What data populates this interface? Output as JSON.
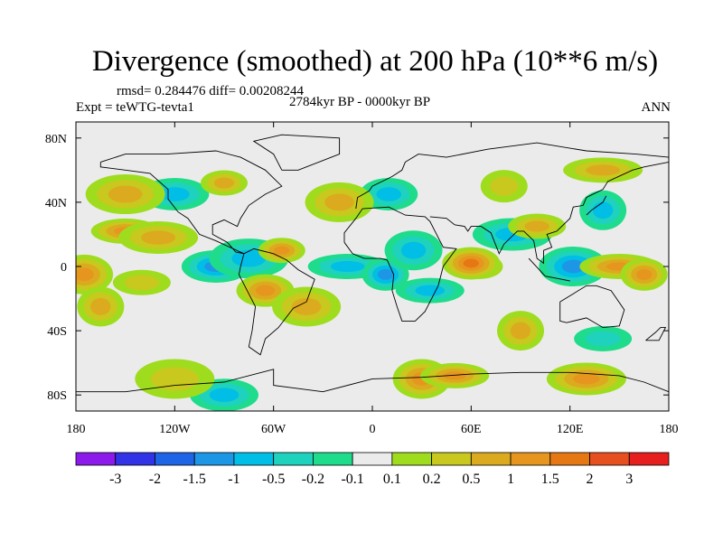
{
  "chart_data": {
    "type": "heatmap",
    "title": "Divergence (smoothed) at 200 hPa (10**6 m/s)",
    "stats_line": "rmsd= 0.284476 diff= 0.00208244",
    "experiment": "Expt = teWTG-tevta1",
    "period": "2784kyr BP - 0000kyr BP",
    "season": "ANN",
    "x_range": [
      -180,
      180
    ],
    "y_range": [
      -90,
      90
    ],
    "x_ticks": [
      {
        "value": -180,
        "label": "180"
      },
      {
        "value": -120,
        "label": "120W"
      },
      {
        "value": -60,
        "label": "60W"
      },
      {
        "value": 0,
        "label": "0"
      },
      {
        "value": 60,
        "label": "60E"
      },
      {
        "value": 120,
        "label": "120E"
      },
      {
        "value": 180,
        "label": "180"
      }
    ],
    "y_ticks": [
      {
        "value": 80,
        "label": "80N"
      },
      {
        "value": 40,
        "label": "40N"
      },
      {
        "value": 0,
        "label": "0"
      },
      {
        "value": -40,
        "label": "40S"
      },
      {
        "value": -80,
        "label": "80S"
      }
    ],
    "colorbar": {
      "colors": [
        "#8c1aeb",
        "#3232e6",
        "#1e64e6",
        "#1e96e6",
        "#00bee6",
        "#1ed2be",
        "#1edc8c",
        "#ebebeb",
        "#a0dc1e",
        "#c8c81e",
        "#dcaa1e",
        "#e6961e",
        "#e67814",
        "#e6501e",
        "#e61e1e"
      ],
      "labels": [
        "-3",
        "-2",
        "-1.5",
        "-1",
        "-0.5",
        "-0.2",
        "-0.1",
        "0.1",
        "0.2",
        "0.5",
        "1",
        "1.5",
        "2",
        "3"
      ]
    },
    "anomalies": [
      {
        "lon": 65,
        "lat": 0,
        "value": 3.0
      },
      {
        "lon": 60,
        "lat": 2,
        "value": 1.5
      },
      {
        "lon": 122,
        "lat": 0,
        "value": -1.0
      },
      {
        "lon": 150,
        "lat": 0,
        "value": 1.0
      },
      {
        "lon": 165,
        "lat": -5,
        "value": 1.0
      },
      {
        "lon": -175,
        "lat": -5,
        "value": 1.0
      },
      {
        "lon": -150,
        "lat": 22,
        "value": 1.0
      },
      {
        "lon": -130,
        "lat": 18,
        "value": 0.5
      },
      {
        "lon": -165,
        "lat": -25,
        "value": 0.5
      },
      {
        "lon": -140,
        "lat": -10,
        "value": 0.2
      },
      {
        "lon": -95,
        "lat": 0,
        "value": -1.0
      },
      {
        "lon": -75,
        "lat": 5,
        "value": -0.5
      },
      {
        "lon": -55,
        "lat": 10,
        "value": 1.0
      },
      {
        "lon": -65,
        "lat": -15,
        "value": 1.0
      },
      {
        "lon": -40,
        "lat": -25,
        "value": 0.5
      },
      {
        "lon": -15,
        "lat": 0,
        "value": -0.5
      },
      {
        "lon": 8,
        "lat": -5,
        "value": -1.0
      },
      {
        "lon": 25,
        "lat": 10,
        "value": -0.5
      },
      {
        "lon": 35,
        "lat": -15,
        "value": -0.5
      },
      {
        "lon": 85,
        "lat": 20,
        "value": -0.5
      },
      {
        "lon": 140,
        "lat": 35,
        "value": -0.5
      },
      {
        "lon": 100,
        "lat": 25,
        "value": 0.5
      },
      {
        "lon": -120,
        "lat": 45,
        "value": -0.5
      },
      {
        "lon": -150,
        "lat": 45,
        "value": 0.5
      },
      {
        "lon": -90,
        "lat": 52,
        "value": 0.5
      },
      {
        "lon": 10,
        "lat": 45,
        "value": -0.5
      },
      {
        "lon": -20,
        "lat": 40,
        "value": 0.5
      },
      {
        "lon": 140,
        "lat": 60,
        "value": 0.5
      },
      {
        "lon": 80,
        "lat": 50,
        "value": 0.2
      },
      {
        "lon": 30,
        "lat": -70,
        "value": 1.0
      },
      {
        "lon": 50,
        "lat": -68,
        "value": 1.0
      },
      {
        "lon": 130,
        "lat": -70,
        "value": 1.0
      },
      {
        "lon": 90,
        "lat": -40,
        "value": 0.5
      },
      {
        "lon": 140,
        "lat": -45,
        "value": -0.2
      },
      {
        "lon": -90,
        "lat": -80,
        "value": -0.5
      },
      {
        "lon": -120,
        "lat": -70,
        "value": 0.2
      }
    ]
  }
}
